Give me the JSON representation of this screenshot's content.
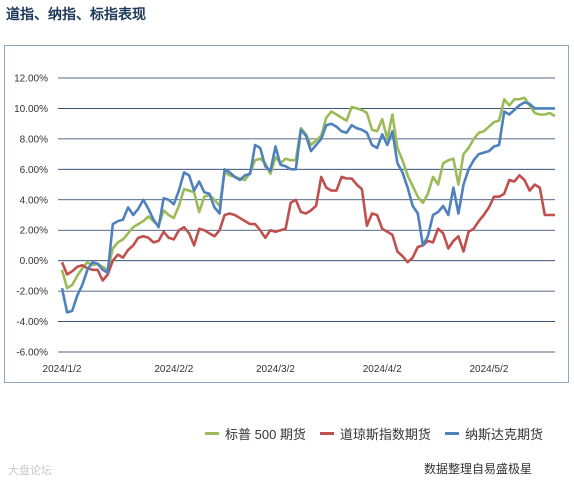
{
  "page": {
    "title": "道指、纳指、标指表现",
    "source": "数据整理自易盛极星",
    "watermark": "大盘论坛"
  },
  "chart_data": {
    "type": "line",
    "title": "道指、纳指、标指表现",
    "xlabel": "",
    "ylabel": "",
    "ylim": [
      -6,
      12
    ],
    "yticks": [
      "12.00%",
      "10.00%",
      "8.00%",
      "6.00%",
      "4.00%",
      "2.00%",
      "0.00%",
      "-2.00%",
      "-4.00%",
      "-6.00%"
    ],
    "ytick_values": [
      12,
      10,
      8,
      6,
      4,
      2,
      0,
      -2,
      -4,
      -6
    ],
    "xticks": [
      {
        "label": "2024/1/2",
        "x": 0
      },
      {
        "label": "2024/2/2",
        "x": 22
      },
      {
        "label": "2024/3/2",
        "x": 42
      },
      {
        "label": "2024/4/2",
        "x": 63
      },
      {
        "label": "2024/5/2",
        "x": 84
      }
    ],
    "x_max": 97,
    "grid": true,
    "legend_position": "bottom-right",
    "series": [
      {
        "name": "标普 500 期货",
        "color": "#9bbb59",
        "values": [
          -0.6,
          -1.8,
          -1.6,
          -1.0,
          -0.5,
          -0.1,
          -0.3,
          -0.2,
          -0.4,
          -0.6,
          0.8,
          1.2,
          1.4,
          1.8,
          2.2,
          2.4,
          2.6,
          2.9,
          2.6,
          2.3,
          3.3,
          3.0,
          2.8,
          3.6,
          4.7,
          4.6,
          4.5,
          3.2,
          4.2,
          4.3,
          4.0,
          3.6,
          5.8,
          5.6,
          5.5,
          5.4,
          5.3,
          5.8,
          6.6,
          6.7,
          6.4,
          5.7,
          6.8,
          6.4,
          6.7,
          6.6,
          6.6,
          8.7,
          8.3,
          7.6,
          7.9,
          8.2,
          9.4,
          9.8,
          9.6,
          9.4,
          9.2,
          10.1,
          10.0,
          9.9,
          9.7,
          8.6,
          8.5,
          9.3,
          8.0,
          9.6,
          7.4,
          6.6,
          5.6,
          4.9,
          4.2,
          3.8,
          4.4,
          5.5,
          5.0,
          6.4,
          6.6,
          6.7,
          5.0,
          7.0,
          7.4,
          8.0,
          8.4,
          8.5,
          8.8,
          9.1,
          9.2,
          10.6,
          10.2,
          10.6,
          10.6,
          10.7,
          10.2,
          9.7,
          9.6,
          9.6,
          9.7,
          9.5
        ],
        "comment_unused": ""
      },
      {
        "name": "道琼斯指数期货",
        "color": "#c0504d",
        "values": [
          -0.1,
          -0.9,
          -0.7,
          -0.4,
          -0.3,
          -0.5,
          -0.6,
          -0.6,
          -1.3,
          -0.9,
          0.0,
          0.4,
          0.2,
          0.7,
          1.0,
          1.5,
          1.6,
          1.5,
          1.2,
          1.3,
          1.9,
          1.5,
          1.4,
          2.0,
          2.2,
          1.8,
          1.0,
          2.1,
          2.0,
          1.8,
          1.6,
          2.0,
          3.0,
          3.1,
          3.0,
          2.8,
          2.6,
          2.4,
          2.4,
          2.0,
          1.5,
          2.0,
          1.9,
          2.0,
          2.1,
          3.8,
          4.0,
          3.2,
          3.1,
          3.3,
          3.6,
          5.5,
          4.8,
          4.6,
          4.6,
          5.5,
          5.4,
          5.4,
          5.0,
          4.7,
          2.3,
          3.1,
          3.0,
          2.1,
          1.9,
          1.7,
          0.6,
          0.3,
          -0.1,
          0.2,
          0.9,
          1.0,
          1.3,
          1.2,
          2.1,
          1.8,
          0.8,
          1.3,
          1.6,
          0.6,
          1.9,
          2.1,
          2.6,
          3.0,
          3.5,
          4.2,
          4.2,
          4.4,
          5.3,
          5.2,
          5.6,
          5.3,
          4.6,
          5.0,
          4.8,
          3.0,
          3.0,
          3.0
        ]
      },
      {
        "name": "纳斯达克期货",
        "color": "#4f81bd",
        "values": [
          -1.8,
          -3.4,
          -3.3,
          -2.3,
          -1.6,
          -0.6,
          -0.1,
          -0.2,
          -0.6,
          -0.8,
          2.4,
          2.6,
          2.7,
          3.5,
          3.0,
          3.4,
          4.0,
          3.4,
          2.7,
          2.2,
          4.1,
          4.0,
          3.7,
          4.6,
          5.8,
          5.6,
          4.6,
          5.2,
          4.5,
          4.4,
          3.5,
          3.1,
          6.0,
          5.8,
          5.5,
          5.3,
          5.6,
          5.7,
          7.6,
          7.4,
          6.2,
          5.9,
          7.5,
          6.3,
          6.2,
          6.0,
          6.0,
          8.6,
          8.2,
          7.2,
          7.6,
          8.0,
          8.9,
          9.0,
          8.8,
          8.5,
          8.4,
          8.9,
          8.7,
          8.6,
          8.4,
          7.6,
          7.4,
          8.3,
          7.6,
          8.5,
          6.4,
          5.8,
          4.8,
          3.6,
          3.1,
          1.0,
          1.6,
          3.0,
          3.2,
          3.6,
          3.0,
          4.8,
          3.1,
          5.0,
          6.0,
          6.6,
          7.0,
          7.1,
          7.2,
          7.5,
          7.6,
          9.8,
          9.6,
          9.9,
          10.2,
          10.4,
          10.3,
          10.0,
          10.0,
          10.0,
          10.0,
          10.0
        ]
      }
    ]
  }
}
